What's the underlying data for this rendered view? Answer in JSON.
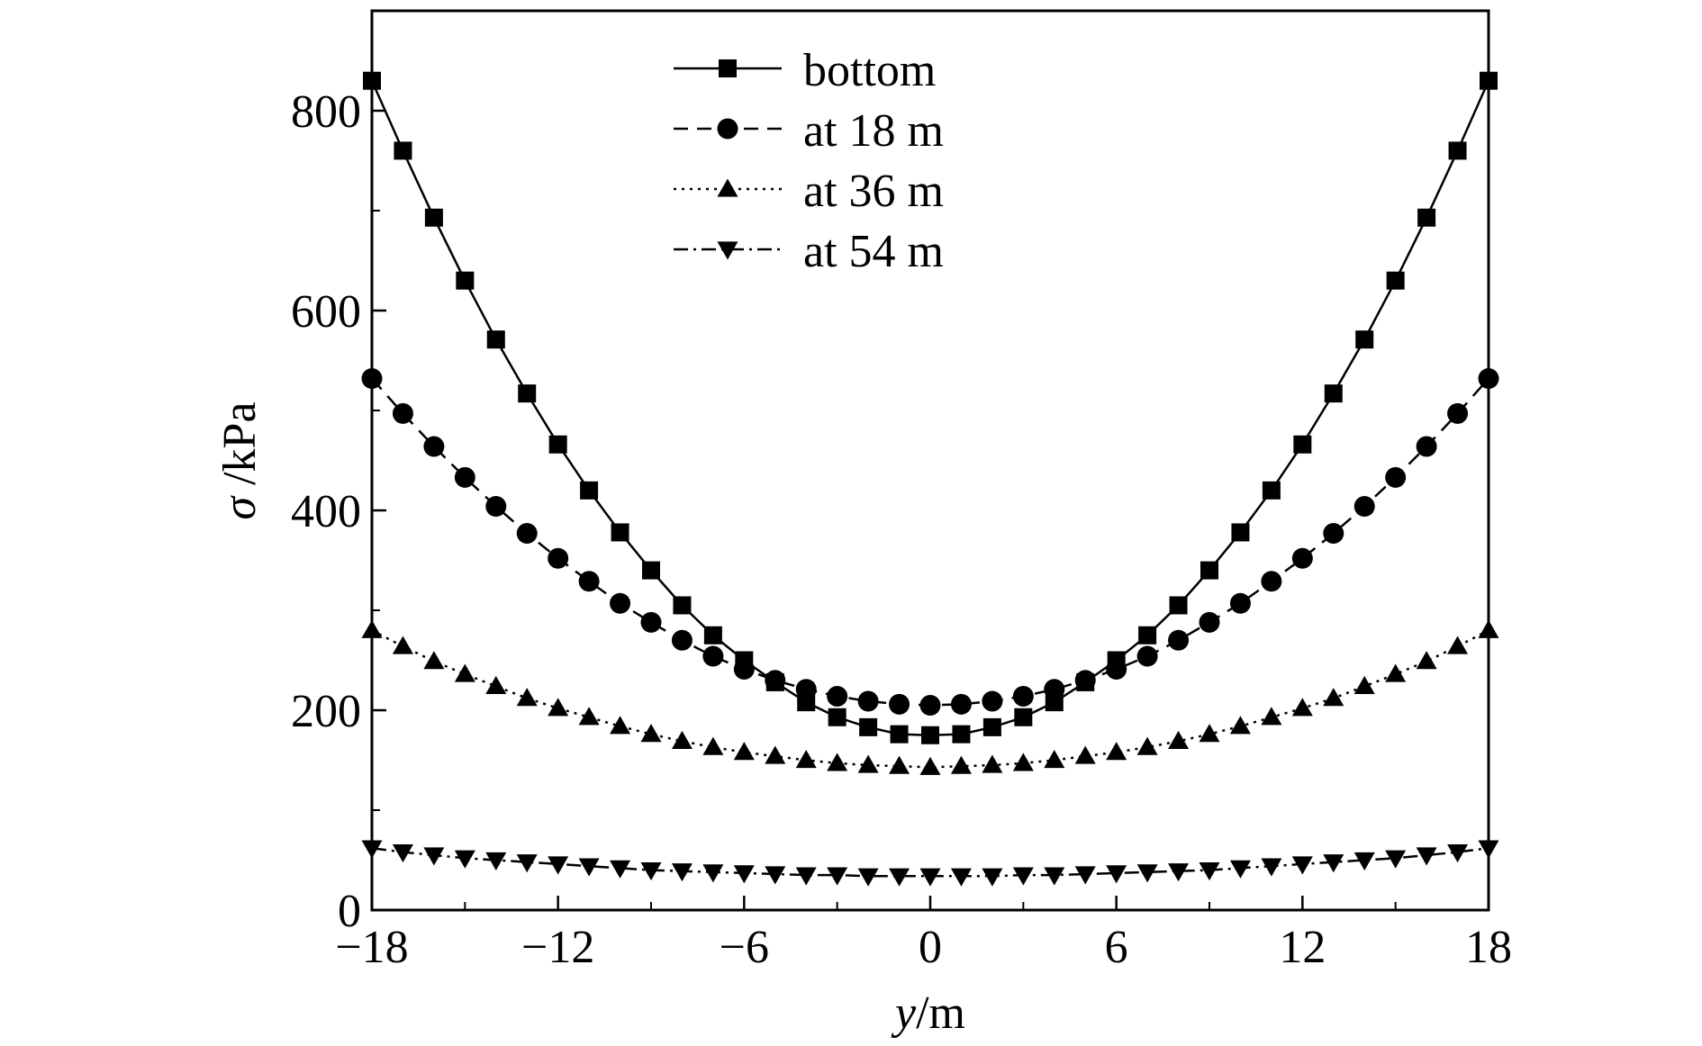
{
  "chart_data": {
    "type": "line",
    "xlabel_var": "y",
    "xlabel_unit": "/m",
    "ylabel_var": "σ",
    "ylabel_unit": " /kPa",
    "xlim": [
      -18,
      18
    ],
    "ylim": [
      0,
      900
    ],
    "xticks": [
      -18,
      -12,
      -6,
      0,
      6,
      12,
      18
    ],
    "xtick_labels": [
      "−18",
      "−12",
      "−6",
      "0",
      "6",
      "12",
      "18"
    ],
    "yticks": [
      0,
      200,
      400,
      600,
      800
    ],
    "ytick_labels": [
      "0",
      "200",
      "400",
      "600",
      "800"
    ],
    "yminor_ticks": [
      100,
      300,
      500,
      700
    ],
    "xminor_ticks": [
      -15,
      -9,
      -3,
      3,
      9,
      15
    ],
    "grid": false,
    "legend_position": "top-center",
    "x": [
      -18,
      -17,
      -16,
      -15,
      -14,
      -13,
      -12,
      -11,
      -10,
      -9,
      -8,
      -7,
      -6,
      -5,
      -4,
      -3,
      -2,
      -1,
      0,
      1,
      2,
      3,
      4,
      5,
      6,
      7,
      8,
      9,
      10,
      11,
      12,
      13,
      14,
      15,
      16,
      17,
      18
    ],
    "series": [
      {
        "name": "bottom",
        "marker": "square",
        "dash": "solid",
        "values": [
          830,
          760,
          693,
          630,
          571,
          517,
          466,
          420,
          378,
          340,
          305,
          275,
          250,
          228,
          208,
          193,
          183,
          176,
          175,
          176,
          183,
          193,
          208,
          228,
          250,
          275,
          305,
          340,
          378,
          420,
          466,
          517,
          571,
          630,
          693,
          760,
          830
        ]
      },
      {
        "name": "at 18 m",
        "marker": "circle",
        "dash": "dashed",
        "values": [
          532,
          497,
          464,
          433,
          404,
          377,
          352,
          329,
          307,
          288,
          270,
          254,
          241,
          230,
          221,
          214,
          209,
          206,
          205,
          206,
          209,
          214,
          221,
          230,
          241,
          254,
          270,
          288,
          307,
          329,
          352,
          377,
          404,
          433,
          464,
          497,
          532
        ]
      },
      {
        "name": "at 36 m",
        "marker": "triangle-up",
        "dash": "dotted",
        "values": [
          280,
          264,
          249,
          236,
          224,
          212,
          202,
          193,
          184,
          176,
          169,
          163,
          158,
          154,
          150,
          147,
          145,
          144,
          143,
          144,
          145,
          147,
          150,
          154,
          158,
          163,
          169,
          176,
          184,
          193,
          202,
          212,
          224,
          236,
          249,
          264,
          280
        ]
      },
      {
        "name": "at 54 m",
        "marker": "triangle-down",
        "dash": "dashdot",
        "values": [
          62,
          58,
          55,
          52,
          50,
          48,
          46,
          44,
          42,
          40,
          39,
          38,
          37,
          36,
          35,
          35,
          34,
          34,
          34,
          34,
          34,
          35,
          35,
          36,
          37,
          38,
          39,
          40,
          42,
          44,
          46,
          48,
          50,
          52,
          55,
          58,
          62
        ]
      }
    ]
  }
}
